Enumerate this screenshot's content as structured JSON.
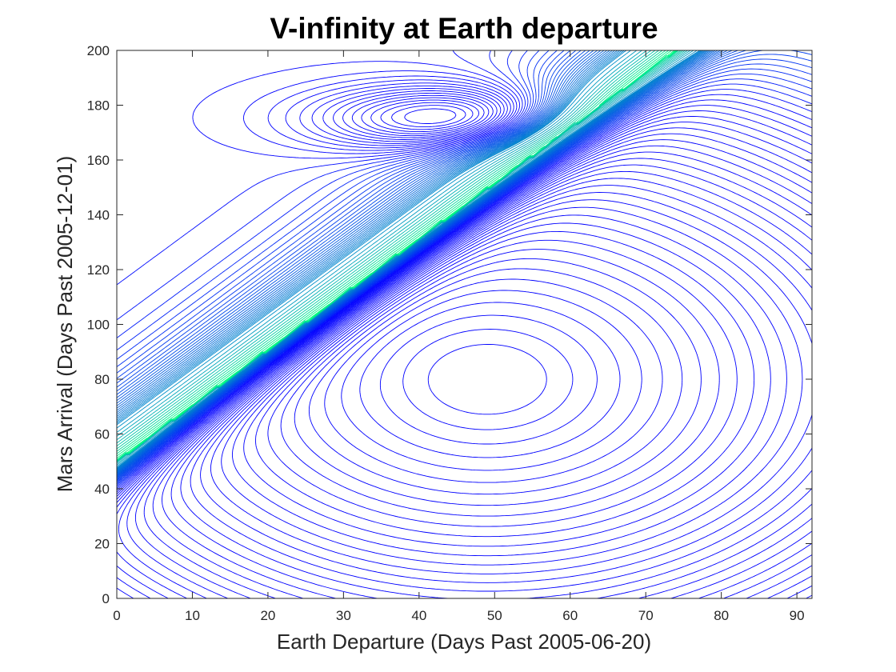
{
  "chart_data": {
    "type": "contour",
    "title": "V-infinity at Earth departure",
    "xlabel": "Earth Departure (Days Past 2005-06-20)",
    "ylabel": "Mars Arrival (Days Past 2005-12-01)",
    "xlim": [
      0,
      92
    ],
    "ylim": [
      0,
      200
    ],
    "xticks": [
      0,
      10,
      20,
      30,
      40,
      50,
      60,
      70,
      80,
      90
    ],
    "yticks": [
      0,
      20,
      40,
      60,
      80,
      100,
      120,
      140,
      160,
      180,
      200
    ],
    "grid": false,
    "legend": "none",
    "colormap": [
      "#0000ff",
      "#00ff80"
    ],
    "minimum": {
      "x": 49,
      "y": 80
    },
    "ridge": {
      "start": [
        0,
        50
      ],
      "end": [
        74,
        200
      ]
    },
    "secondary_minimum": {
      "x": 46,
      "y": 175
    }
  }
}
